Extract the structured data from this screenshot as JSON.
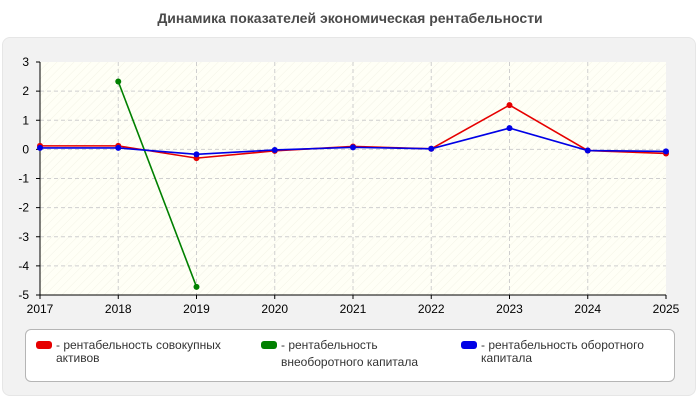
{
  "chart_data": {
    "type": "line",
    "title": "Динамика показателей экономическая рентабельности",
    "xlabel": "",
    "ylabel": "",
    "x": [
      "2017",
      "2018",
      "2019",
      "2020",
      "2021",
      "2022",
      "2023",
      "2024",
      "2025"
    ],
    "yticks": [
      "3",
      "2",
      "1",
      "0",
      "-1",
      "-2",
      "-3",
      "-4",
      "-5"
    ],
    "ylim": [
      -5,
      3
    ],
    "grid": true,
    "legend_position": "bottom",
    "series": [
      {
        "name": "рентабельность совокупных активов",
        "label_lines": [
          "- рентабельность совокупных",
          "активов"
        ],
        "color": "#e60000",
        "values": [
          0.12,
          0.12,
          -0.3,
          -0.05,
          0.1,
          0.02,
          1.52,
          -0.04,
          -0.14
        ]
      },
      {
        "name": "рентабельность внеоборотного капитала",
        "label_lines": [
          "- рентабельность",
          "внеоборотного капитала"
        ],
        "color": "#008000",
        "values": [
          null,
          2.33,
          -4.72,
          null,
          null,
          null,
          null,
          null,
          null
        ]
      },
      {
        "name": "рентабельность оборотного капитала",
        "label_lines": [
          "- рентабельность оборотного",
          "капитала"
        ],
        "color": "#0000e6",
        "values": [
          0.05,
          0.05,
          -0.17,
          -0.02,
          0.07,
          0.02,
          0.73,
          -0.04,
          -0.07
        ]
      }
    ]
  }
}
